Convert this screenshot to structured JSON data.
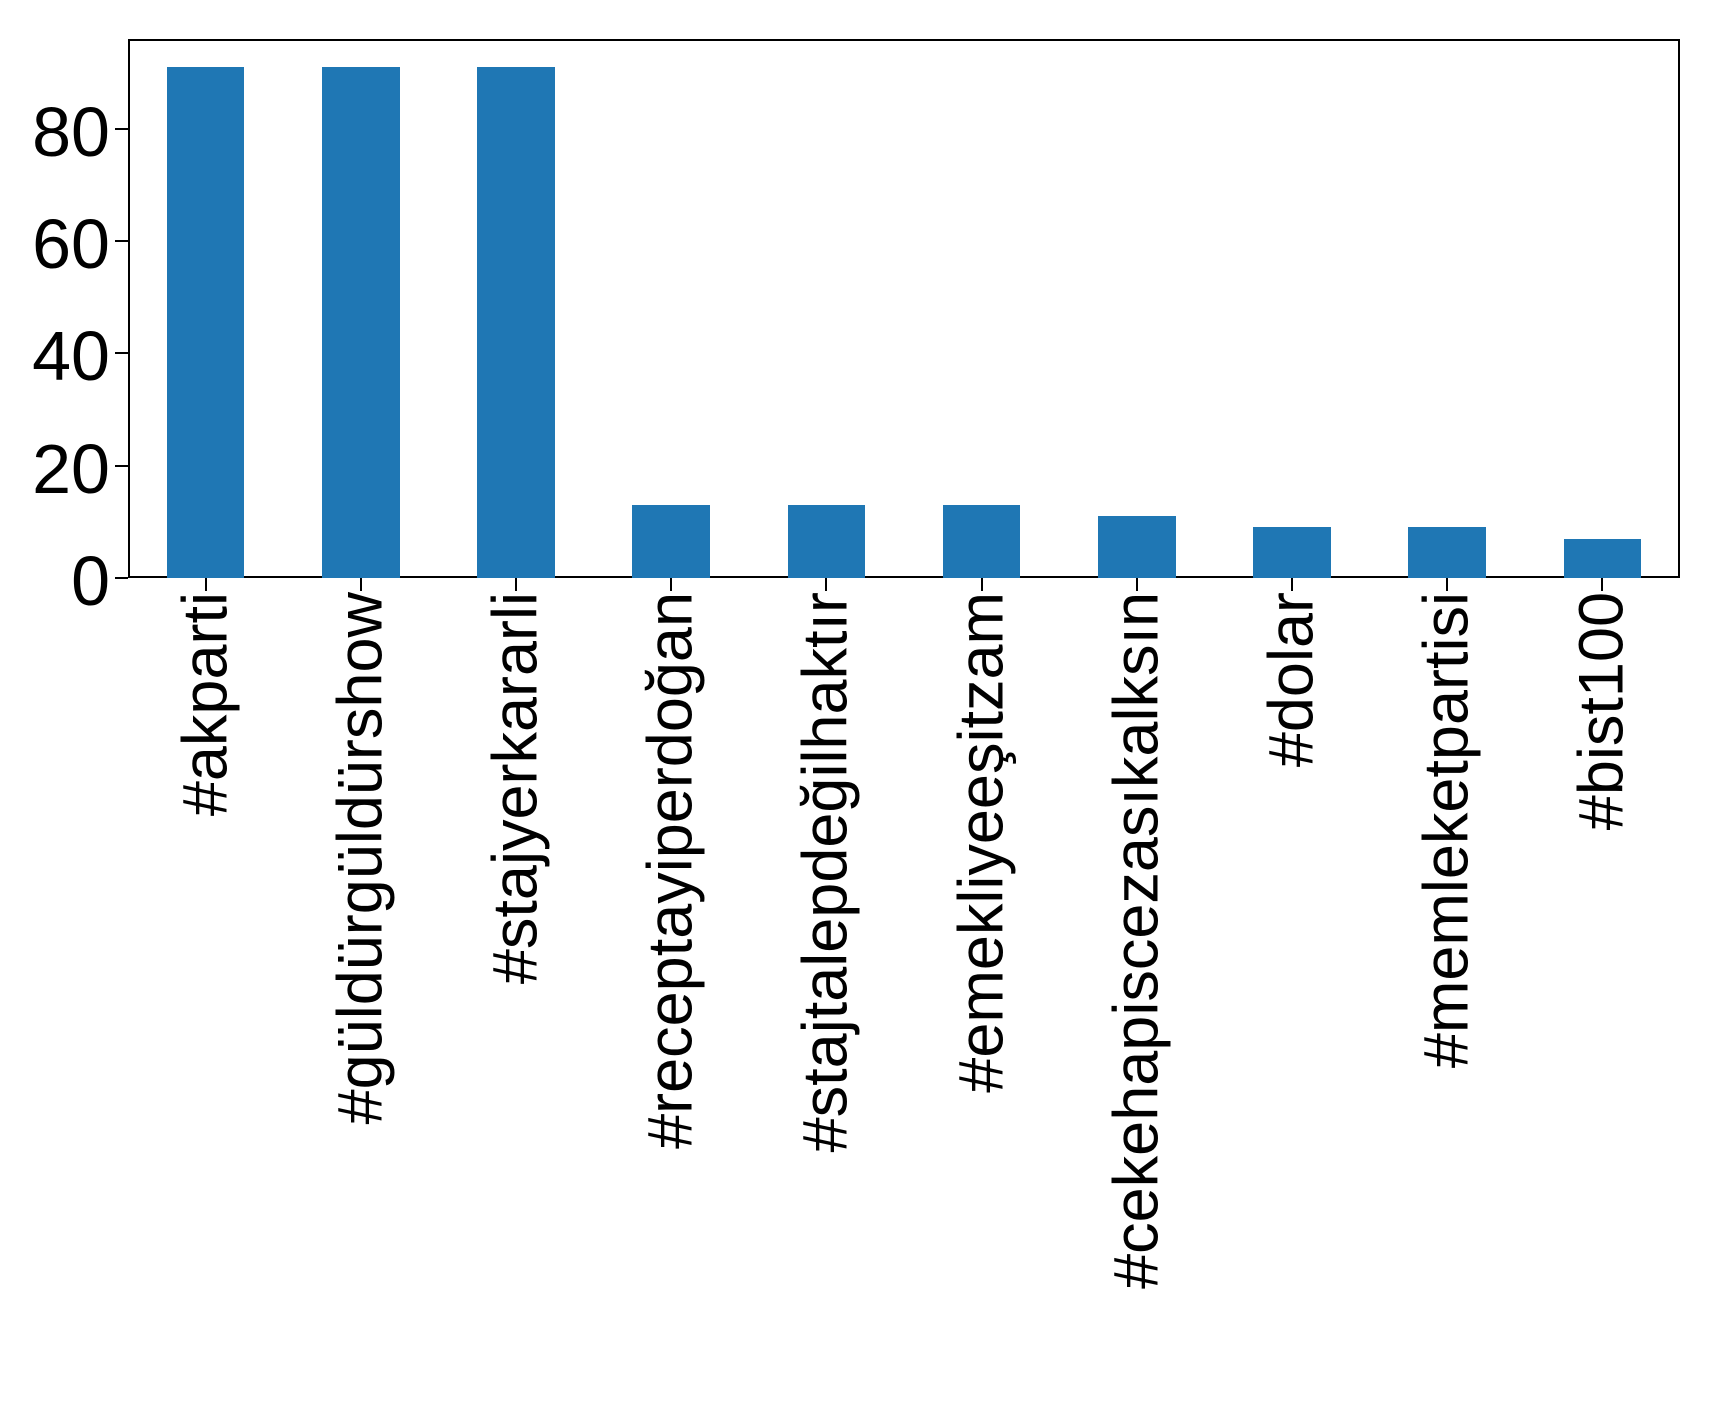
{
  "chart_data": {
    "type": "bar",
    "title": "",
    "xlabel": "",
    "ylabel": "",
    "categories": [
      "#akparti",
      "#güldürgüldürshow",
      "#stajyerkararli",
      "#receptayiperdoğan",
      "#stajtalepdeğilhaktır",
      "#emekliyeeşitzam",
      "#cekehapiscezasıkalksın",
      "#dolar",
      "#memleketpartisi",
      "#bist100"
    ],
    "values": [
      91,
      91,
      91,
      13,
      13,
      13,
      11,
      9,
      9,
      7
    ],
    "yticks": [
      0,
      20,
      40,
      60,
      80
    ],
    "ylim": [
      0,
      96
    ],
    "xtick_rotation": 90,
    "grid": false,
    "legend": null,
    "bar_color": "#1f77b4",
    "text_color": "#000000",
    "frame_color": "#000000"
  }
}
